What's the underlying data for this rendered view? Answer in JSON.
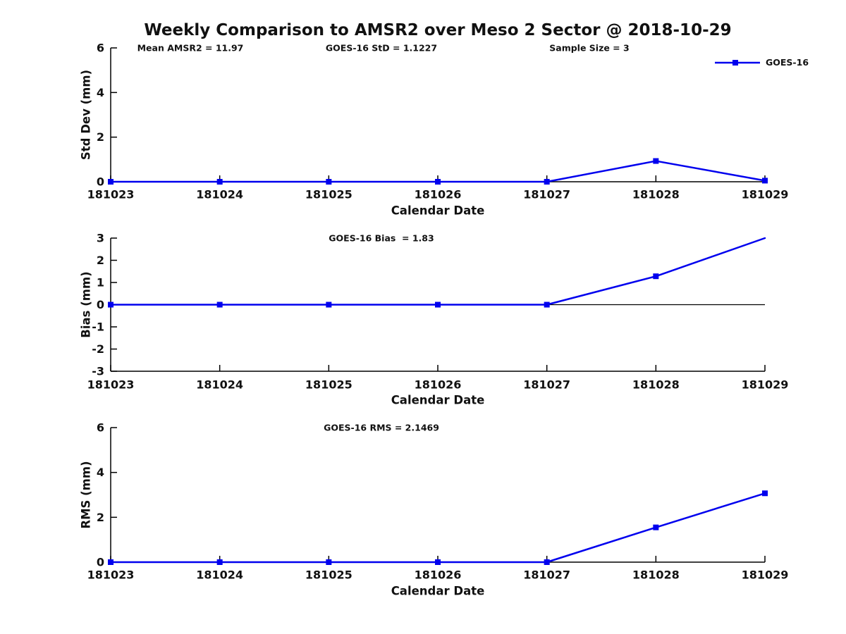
{
  "title": "Weekly Comparison to AMSR2 over Meso 2 Sector @ 2018-10-29",
  "legend": {
    "label": "GOES-16",
    "color": "#0000EE",
    "marker": "square"
  },
  "colors": {
    "line": "#0000EE",
    "axis": "#000000",
    "text": "#111111"
  },
  "chart_data": [
    {
      "type": "line",
      "name": "std-dev",
      "title": "",
      "xlabel": "Calendar Date",
      "ylabel": "Std Dev (mm)",
      "categories": [
        "181023",
        "181024",
        "181025",
        "181026",
        "181027",
        "181028",
        "181029"
      ],
      "series": [
        {
          "name": "GOES-16",
          "values": [
            0,
            0,
            0,
            0,
            0,
            0.93,
            0.05
          ],
          "markers": [
            true,
            true,
            true,
            true,
            true,
            true,
            true
          ]
        }
      ],
      "ylim": [
        0,
        6
      ],
      "yticks": [
        0,
        2,
        4,
        6
      ],
      "grid": false,
      "zero_line": false,
      "legend_position": "top-right",
      "annotations": [
        {
          "text": "Mean AMSR2 = 11.97"
        },
        {
          "text": "GOES-16 StD = 1.1227"
        },
        {
          "text": "Sample Size = 3"
        }
      ]
    },
    {
      "type": "line",
      "name": "bias",
      "title": "",
      "xlabel": "Calendar Date",
      "ylabel": "Bias (mm)",
      "categories": [
        "181023",
        "181024",
        "181025",
        "181026",
        "181027",
        "181028",
        "181029"
      ],
      "series": [
        {
          "name": "GOES-16",
          "values": [
            0,
            0,
            0,
            0,
            0,
            1.28,
            3.0
          ],
          "markers": [
            true,
            true,
            true,
            true,
            true,
            true,
            false
          ]
        }
      ],
      "ylim": [
        -3,
        3
      ],
      "yticks": [
        -3,
        -2,
        -1,
        0,
        1,
        2,
        3
      ],
      "grid": false,
      "zero_line": true,
      "annotations": [
        {
          "text": "GOES-16 Bias  = 1.83"
        }
      ]
    },
    {
      "type": "line",
      "name": "rms",
      "title": "",
      "xlabel": "Calendar Date",
      "ylabel": "RMS (mm)",
      "categories": [
        "181023",
        "181024",
        "181025",
        "181026",
        "181027",
        "181028",
        "181029"
      ],
      "series": [
        {
          "name": "GOES-16",
          "values": [
            0,
            0,
            0,
            0,
            0,
            1.55,
            3.07
          ],
          "markers": [
            true,
            true,
            true,
            true,
            true,
            true,
            true
          ]
        }
      ],
      "ylim": [
        0,
        6
      ],
      "yticks": [
        0,
        2,
        4,
        6
      ],
      "grid": false,
      "zero_line": false,
      "annotations": [
        {
          "text": "GOES-16 RMS = 2.1469"
        }
      ]
    }
  ]
}
